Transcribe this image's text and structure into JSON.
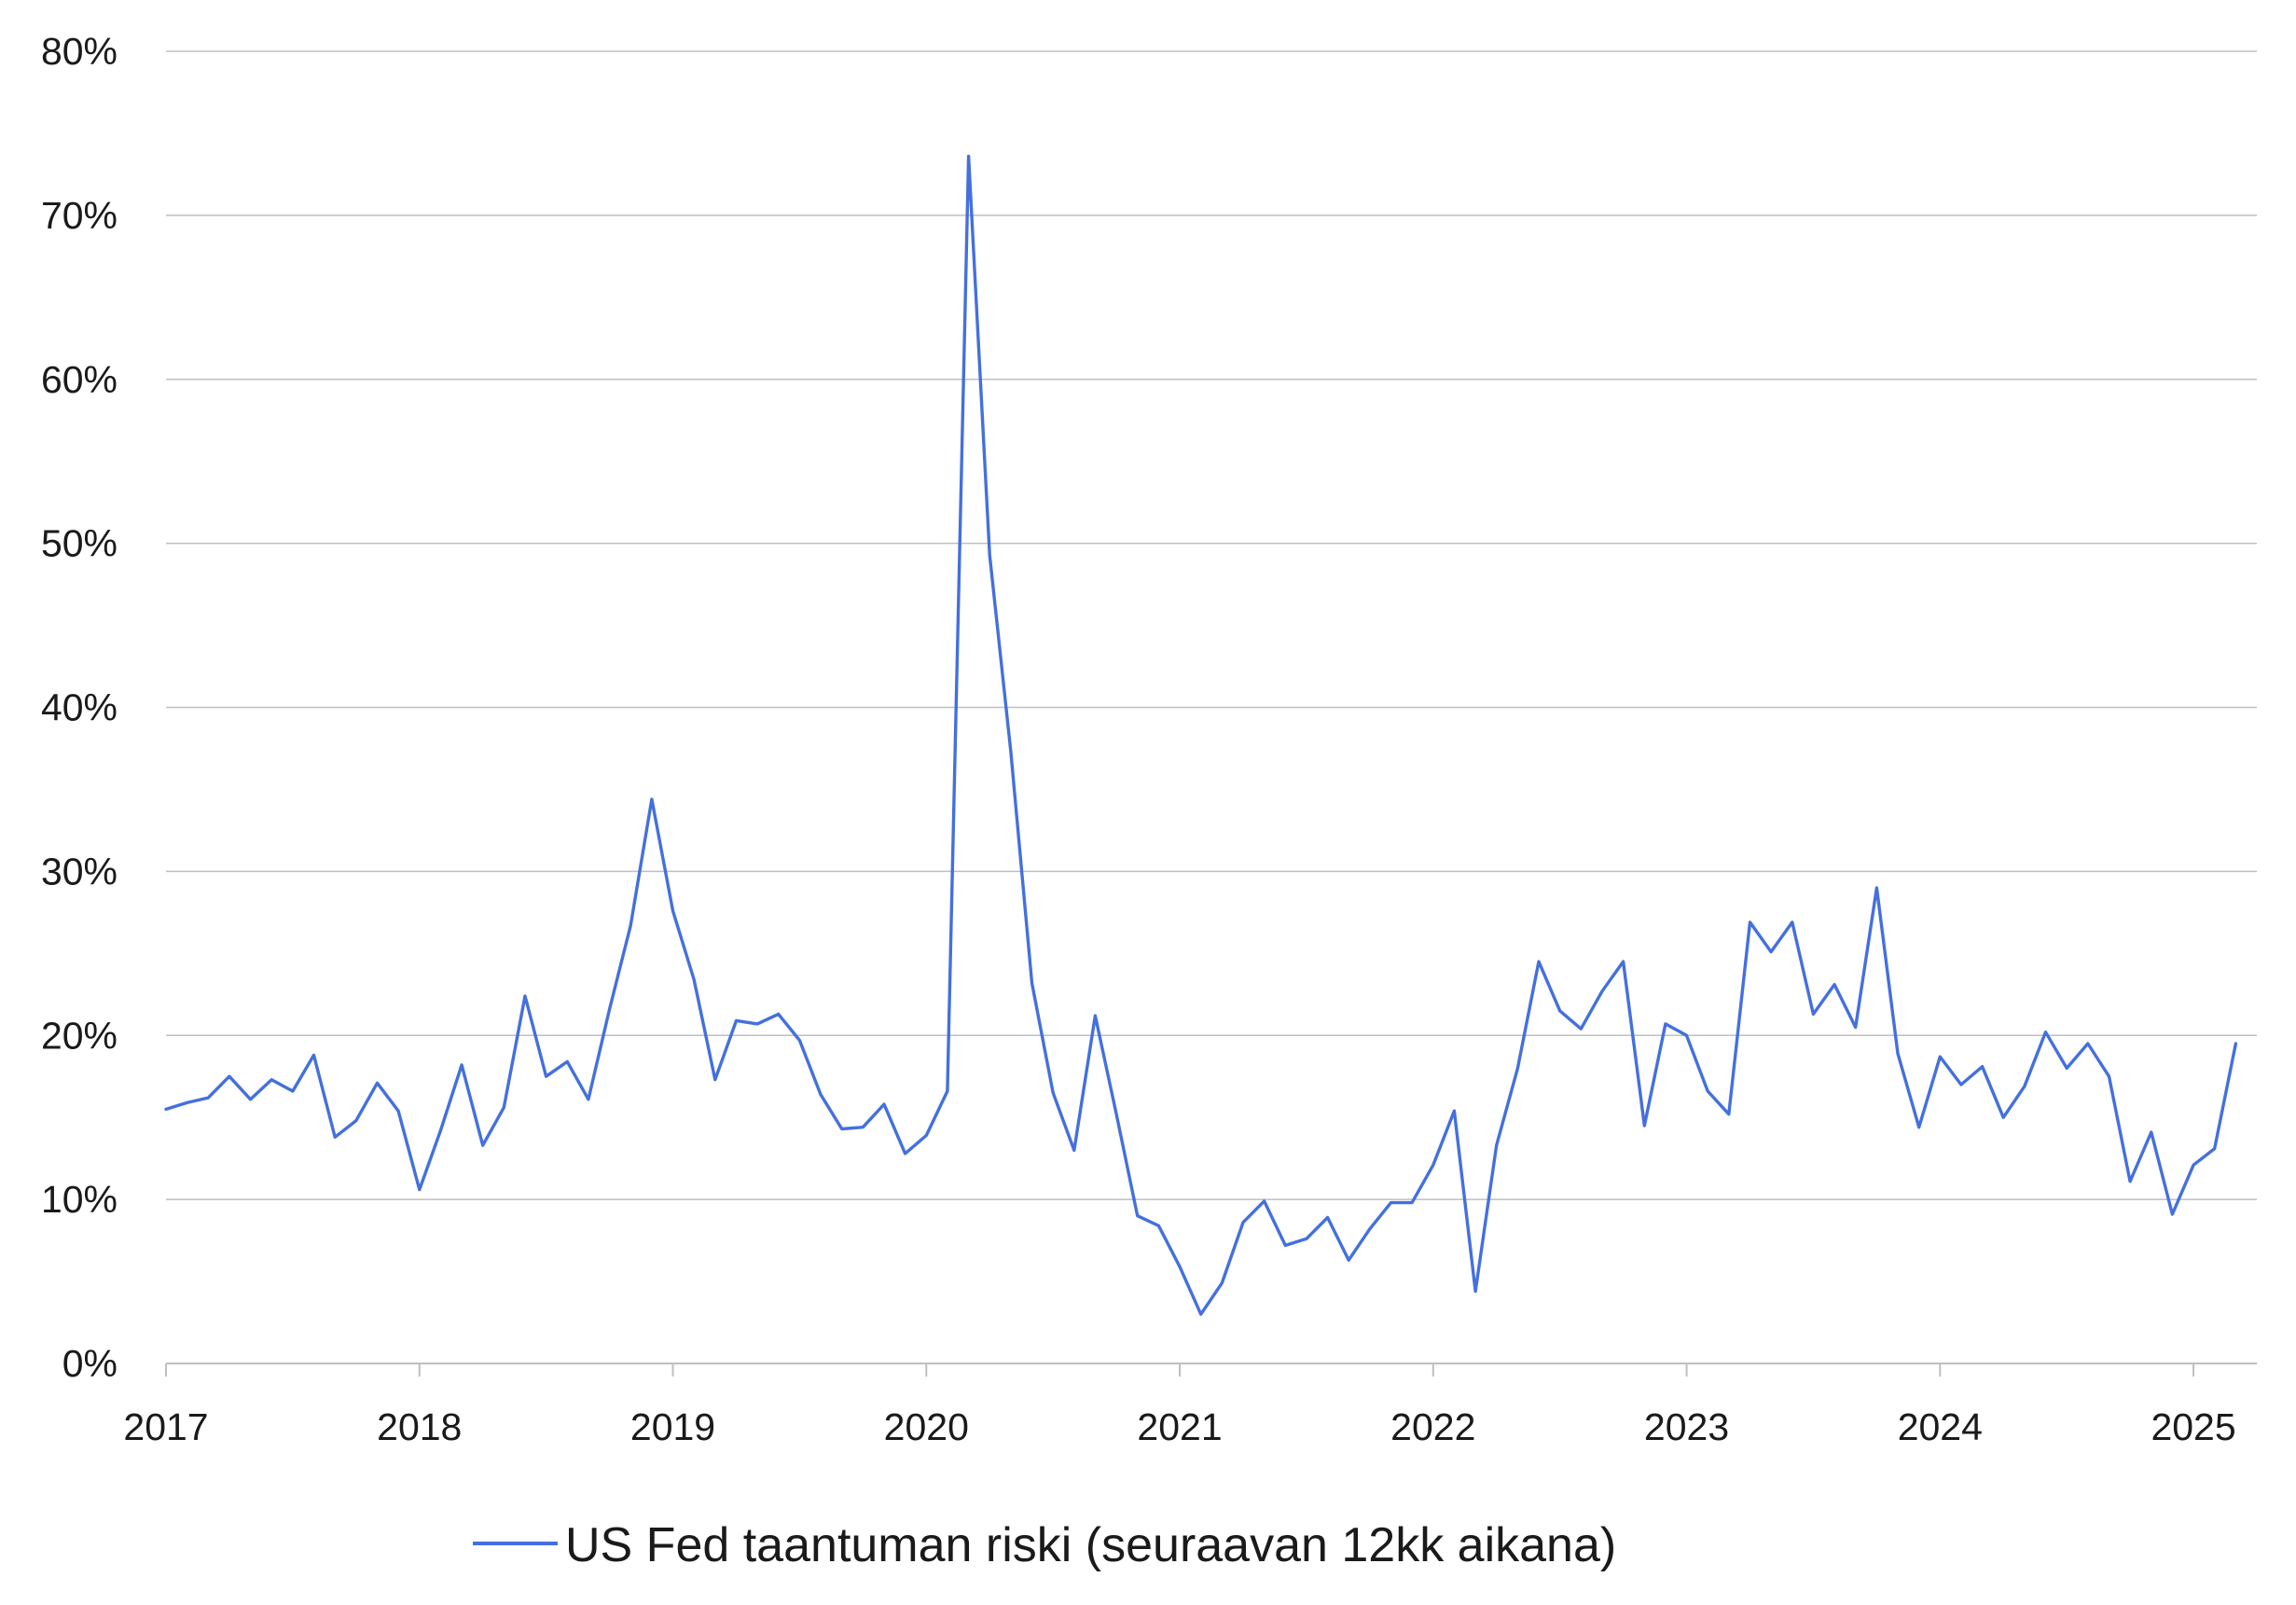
{
  "chart_data": {
    "type": "line",
    "title": "",
    "xlabel": "",
    "ylabel": "",
    "ylim": [
      0,
      0.8
    ],
    "xlim": [
      2017.0,
      2025.25
    ],
    "grid": "horizontal",
    "legend_position": "bottom",
    "colors": {
      "series": "#4470de",
      "grid": "#bfbfbf",
      "axis": "#bfbfbf",
      "text": "#1a1a1a"
    },
    "y_ticks": [
      {
        "value": 0.0,
        "label": "0%"
      },
      {
        "value": 0.1,
        "label": "10%"
      },
      {
        "value": 0.2,
        "label": "20%"
      },
      {
        "value": 0.3,
        "label": "30%"
      },
      {
        "value": 0.4,
        "label": "40%"
      },
      {
        "value": 0.5,
        "label": "50%"
      },
      {
        "value": 0.6,
        "label": "60%"
      },
      {
        "value": 0.7,
        "label": "70%"
      },
      {
        "value": 0.8,
        "label": "80%"
      }
    ],
    "x_ticks": [
      {
        "value": 2017,
        "label": "2017"
      },
      {
        "value": 2018,
        "label": "2018"
      },
      {
        "value": 2019,
        "label": "2019"
      },
      {
        "value": 2020,
        "label": "2020"
      },
      {
        "value": 2021,
        "label": "2021"
      },
      {
        "value": 2022,
        "label": "2022"
      },
      {
        "value": 2023,
        "label": "2023"
      },
      {
        "value": 2024,
        "label": "2024"
      },
      {
        "value": 2025,
        "label": "2025"
      }
    ],
    "series": [
      {
        "name": "US Fed taantuman riski (seuraavan 12kk aikana)",
        "x": [
          "2017-01",
          "2017-02",
          "2017-03",
          "2017-04",
          "2017-05",
          "2017-06",
          "2017-07",
          "2017-08",
          "2017-09",
          "2017-10",
          "2017-11",
          "2017-12",
          "2018-01",
          "2018-02",
          "2018-03",
          "2018-04",
          "2018-05",
          "2018-06",
          "2018-07",
          "2018-08",
          "2018-09",
          "2018-10",
          "2018-11",
          "2018-12",
          "2019-01",
          "2019-02",
          "2019-03",
          "2019-04",
          "2019-05",
          "2019-06",
          "2019-07",
          "2019-08",
          "2019-09",
          "2019-10",
          "2019-11",
          "2019-12",
          "2020-01",
          "2020-02",
          "2020-03",
          "2020-04",
          "2020-05",
          "2020-06",
          "2020-07",
          "2020-08",
          "2020-09",
          "2020-10",
          "2020-11",
          "2020-12",
          "2021-01",
          "2021-02",
          "2021-03",
          "2021-04",
          "2021-05",
          "2021-06",
          "2021-07",
          "2021-08",
          "2021-09",
          "2021-10",
          "2021-11",
          "2021-12",
          "2022-01",
          "2022-02",
          "2022-03",
          "2022-04",
          "2022-05",
          "2022-06",
          "2022-07",
          "2022-08",
          "2022-09",
          "2022-10",
          "2022-11",
          "2022-12",
          "2023-01",
          "2023-02",
          "2023-03",
          "2023-04",
          "2023-05",
          "2023-06",
          "2023-07",
          "2023-08",
          "2023-09",
          "2023-10",
          "2023-11",
          "2023-12",
          "2024-01",
          "2024-02",
          "2024-03",
          "2024-04",
          "2024-05",
          "2024-06",
          "2024-07",
          "2024-08",
          "2024-09",
          "2024-10",
          "2024-11",
          "2024-12",
          "2025-01",
          "2025-02",
          "2025-03"
        ],
        "values": [
          0.155,
          0.159,
          0.162,
          0.175,
          0.161,
          0.173,
          0.166,
          0.188,
          0.138,
          0.148,
          0.171,
          0.154,
          0.106,
          0.142,
          0.182,
          0.133,
          0.156,
          0.224,
          0.175,
          0.184,
          0.161,
          0.216,
          0.267,
          0.344,
          0.276,
          0.234,
          0.173,
          0.209,
          0.207,
          0.213,
          0.197,
          0.164,
          0.143,
          0.144,
          0.158,
          0.128,
          0.139,
          0.166,
          0.736,
          0.493,
          0.373,
          0.232,
          0.165,
          0.13,
          0.212,
          0.152,
          0.09,
          0.084,
          0.059,
          0.03,
          0.049,
          0.086,
          0.099,
          0.072,
          0.076,
          0.089,
          0.063,
          0.082,
          0.098,
          0.098,
          0.121,
          0.154,
          0.044,
          0.133,
          0.18,
          0.245,
          0.215,
          0.204,
          0.227,
          0.245,
          0.145,
          0.207,
          0.2,
          0.166,
          0.152,
          0.269,
          0.251,
          0.269,
          0.213,
          0.231,
          0.205,
          0.29,
          0.189,
          0.144,
          0.187,
          0.17,
          0.181,
          0.15,
          0.169,
          0.202,
          0.18,
          0.195,
          0.175,
          0.111,
          0.141,
          0.091,
          0.121,
          0.131,
          0.195
        ]
      }
    ]
  }
}
